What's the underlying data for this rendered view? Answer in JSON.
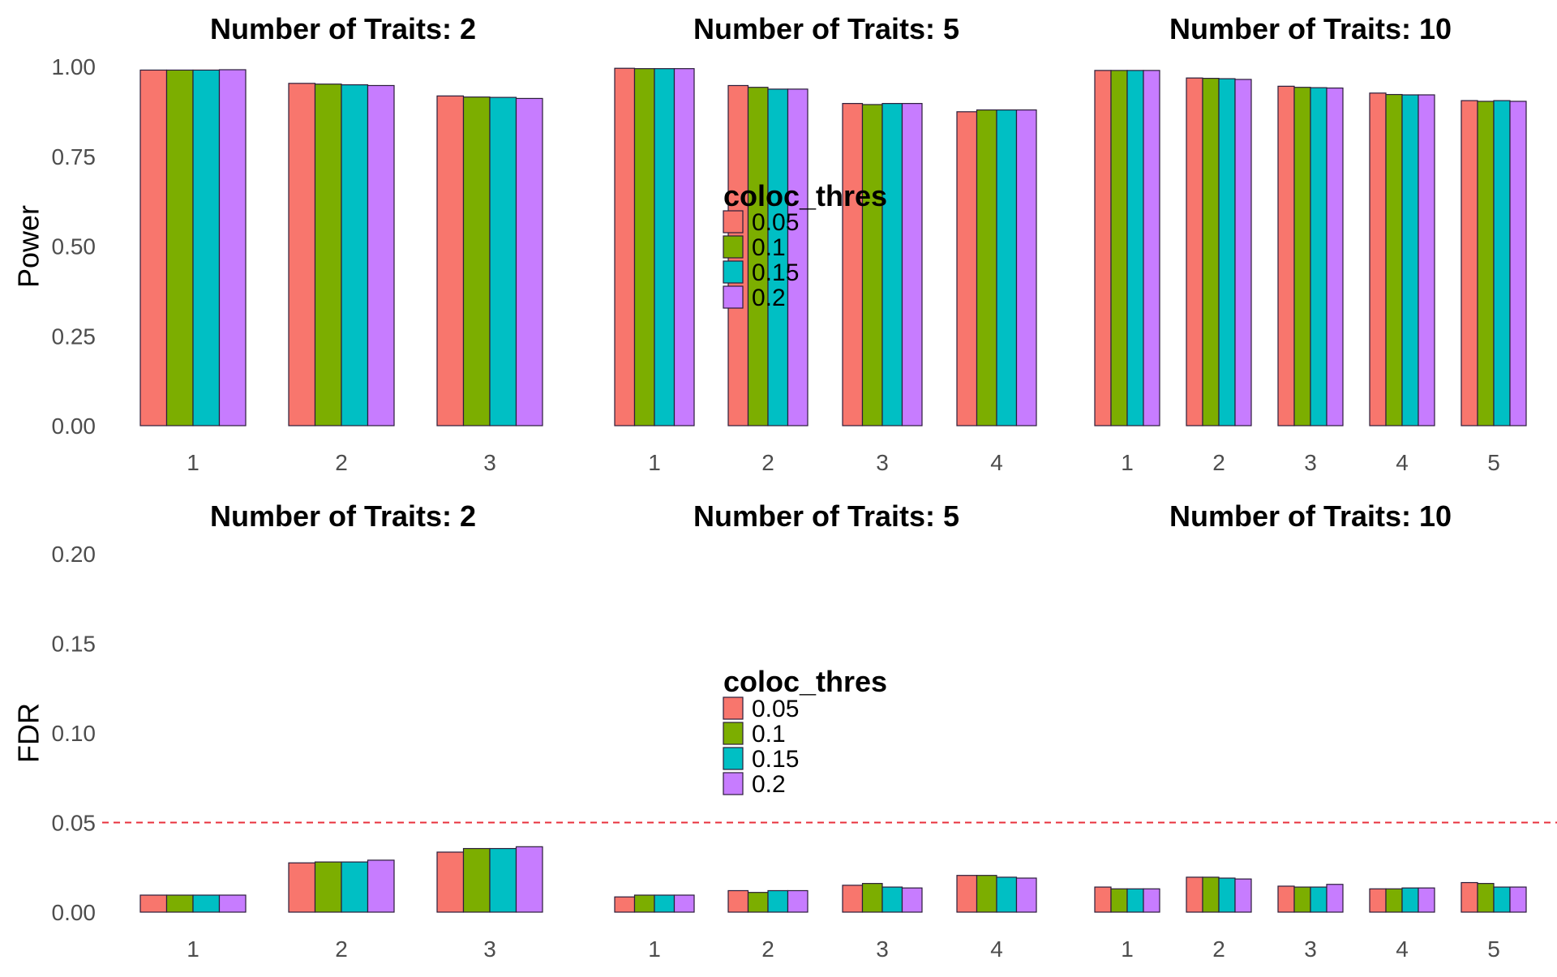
{
  "chart_data": [
    {
      "type": "bar",
      "ylabel": "Power",
      "ylim": [
        0,
        1
      ],
      "yticks": [
        "0.00",
        "0.25",
        "0.50",
        "0.75",
        "1.00"
      ],
      "ytick_values": [
        0,
        0.25,
        0.5,
        0.75,
        1.0
      ],
      "legend": {
        "title": "coloc_thres",
        "entries": [
          "0.05",
          "0.1",
          "0.15",
          "0.2"
        ]
      },
      "grid": false,
      "facets": [
        {
          "title": "Number of Traits: 2",
          "categories": [
            "1",
            "2",
            "3"
          ],
          "series": [
            {
              "name": "0.05",
              "values": [
                0.99,
                0.953,
                0.918
              ]
            },
            {
              "name": "0.1",
              "values": [
                0.99,
                0.951,
                0.915
              ]
            },
            {
              "name": "0.15",
              "values": [
                0.99,
                0.949,
                0.914
              ]
            },
            {
              "name": "0.2",
              "values": [
                0.991,
                0.947,
                0.911
              ]
            }
          ]
        },
        {
          "title": "Number of Traits: 5",
          "categories": [
            "1",
            "2",
            "3",
            "4"
          ],
          "series": [
            {
              "name": "0.05",
              "values": [
                0.995,
                0.947,
                0.897,
                0.874
              ]
            },
            {
              "name": "0.1",
              "values": [
                0.994,
                0.942,
                0.894,
                0.879
              ]
            },
            {
              "name": "0.15",
              "values": [
                0.994,
                0.937,
                0.897,
                0.879
              ]
            },
            {
              "name": "0.2",
              "values": [
                0.994,
                0.937,
                0.897,
                0.879
              ]
            }
          ]
        },
        {
          "title": "Number of Traits: 10",
          "categories": [
            "1",
            "2",
            "3",
            "4",
            "5"
          ],
          "series": [
            {
              "name": "0.05",
              "values": [
                0.989,
                0.968,
                0.945,
                0.926,
                0.905
              ]
            },
            {
              "name": "0.1",
              "values": [
                0.989,
                0.967,
                0.942,
                0.922,
                0.903
              ]
            },
            {
              "name": "0.15",
              "values": [
                0.989,
                0.966,
                0.941,
                0.921,
                0.905
              ]
            },
            {
              "name": "0.2",
              "values": [
                0.989,
                0.964,
                0.94,
                0.921,
                0.903
              ]
            }
          ]
        }
      ]
    },
    {
      "type": "bar",
      "ylabel": "FDR",
      "ylim": [
        0,
        0.2
      ],
      "yticks": [
        "0.00",
        "0.05",
        "0.10",
        "0.15",
        "0.20"
      ],
      "ytick_values": [
        0,
        0.05,
        0.1,
        0.15,
        0.2
      ],
      "reference_line": {
        "y": 0.05,
        "style": "dashed"
      },
      "legend": {
        "title": "coloc_thres",
        "entries": [
          "0.05",
          "0.1",
          "0.15",
          "0.2"
        ]
      },
      "grid": false,
      "facets": [
        {
          "title": "Number of Traits: 2",
          "categories": [
            "1",
            "2",
            "3"
          ],
          "series": [
            {
              "name": "0.05",
              "values": [
                0.0095,
                0.0275,
                0.0335
              ]
            },
            {
              "name": "0.1",
              "values": [
                0.0095,
                0.028,
                0.0355
              ]
            },
            {
              "name": "0.15",
              "values": [
                0.0095,
                0.028,
                0.0355
              ]
            },
            {
              "name": "0.2",
              "values": [
                0.0095,
                0.029,
                0.0365
              ]
            }
          ]
        },
        {
          "title": "Number of Traits: 5",
          "categories": [
            "1",
            "2",
            "3",
            "4"
          ],
          "series": [
            {
              "name": "0.05",
              "values": [
                0.0085,
                0.012,
                0.015,
                0.0205
              ]
            },
            {
              "name": "0.1",
              "values": [
                0.0095,
                0.011,
                0.016,
                0.0205
              ]
            },
            {
              "name": "0.15",
              "values": [
                0.0095,
                0.012,
                0.014,
                0.0195
              ]
            },
            {
              "name": "0.2",
              "values": [
                0.0095,
                0.012,
                0.0135,
                0.019
              ]
            }
          ]
        },
        {
          "title": "Number of Traits: 10",
          "categories": [
            "1",
            "2",
            "3",
            "4",
            "5"
          ],
          "series": [
            {
              "name": "0.05",
              "values": [
                0.014,
                0.0195,
                0.0145,
                0.013,
                0.0165
              ]
            },
            {
              "name": "0.1",
              "values": [
                0.013,
                0.0195,
                0.014,
                0.013,
                0.016
              ]
            },
            {
              "name": "0.15",
              "values": [
                0.013,
                0.019,
                0.014,
                0.0135,
                0.014
              ]
            },
            {
              "name": "0.2",
              "values": [
                0.013,
                0.0185,
                0.0155,
                0.0135,
                0.014
              ]
            }
          ]
        }
      ]
    }
  ],
  "colors": {
    "series": [
      "#F8766D",
      "#7CAE00",
      "#00BFC4",
      "#C77CFF"
    ],
    "bar_outline": "#2b1d3a",
    "reference_line": "#e8303c",
    "tick_text": "#4d4d4d"
  }
}
